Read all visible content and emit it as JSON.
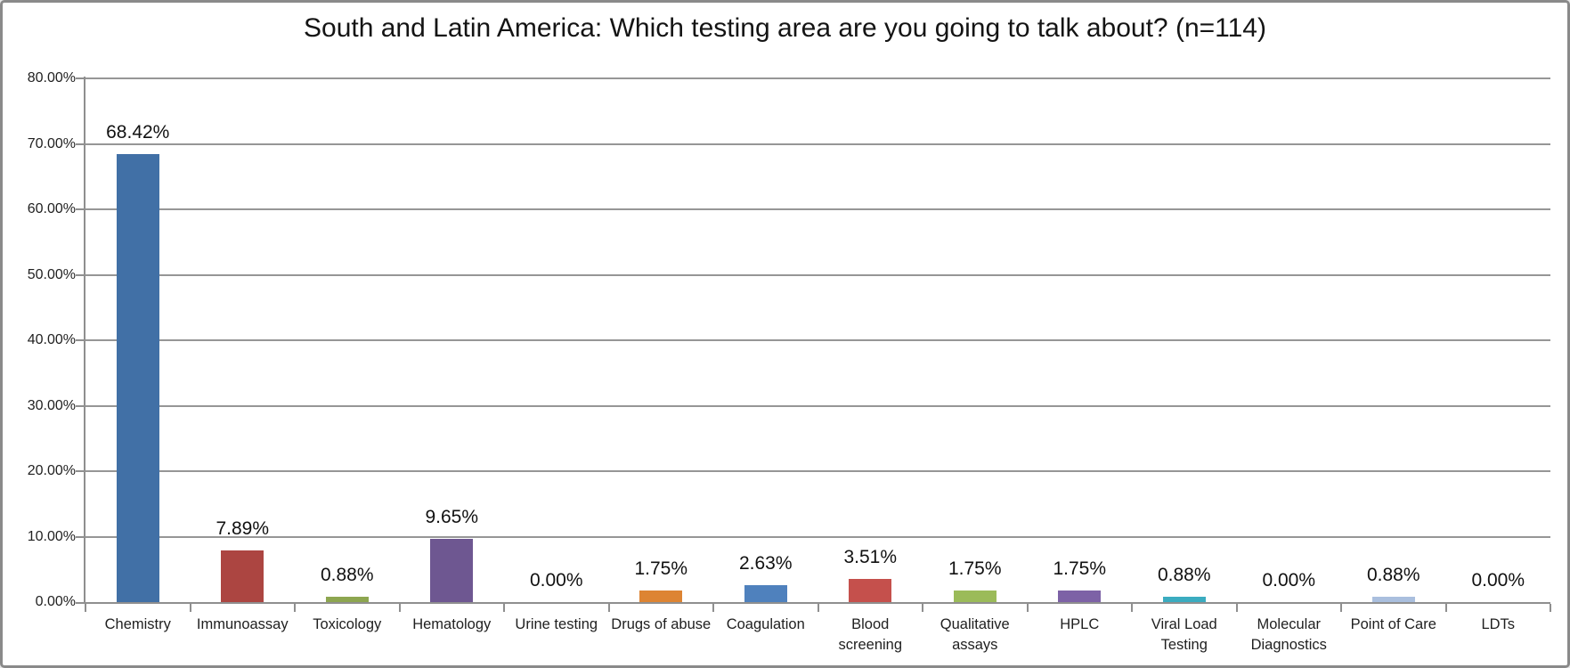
{
  "chart_data": {
    "type": "bar",
    "title": "South and Latin America: Which testing area are you going to talk about? (n=114)",
    "categories": [
      "Chemistry",
      "Immunoassay",
      "Toxicology",
      "Hematology",
      "Urine testing",
      "Drugs of abuse",
      "Coagulation",
      "Blood screening",
      "Qualitative assays",
      "HPLC",
      "Viral Load Testing",
      "Molecular Diagnostics",
      "Point of Care",
      "LDTs"
    ],
    "values": [
      68.42,
      7.89,
      0.88,
      9.65,
      0.0,
      1.75,
      2.63,
      3.51,
      1.75,
      1.75,
      0.88,
      0.0,
      0.88,
      0.0
    ],
    "value_labels": [
      "68.42%",
      "7.89%",
      "0.88%",
      "9.65%",
      "0.00%",
      "1.75%",
      "2.63%",
      "3.51%",
      "1.75%",
      "1.75%",
      "0.88%",
      "0.00%",
      "0.88%",
      "0.00%"
    ],
    "bar_colors": [
      "#4170A6",
      "#AC4541",
      "#8DA650",
      "#6E5791",
      "#4BACC6",
      "#DD8433",
      "#4F81BD",
      "#C5504C",
      "#9BBB59",
      "#7D62A6",
      "#3BACC0",
      "#E59548",
      "#AABFDE",
      "#729ACA"
    ],
    "xlabel": "",
    "ylabel": "",
    "ylim": [
      0,
      80
    ],
    "y_ticks": [
      "0.00%",
      "10.00%",
      "20.00%",
      "30.00%",
      "40.00%",
      "50.00%",
      "60.00%",
      "70.00%",
      "80.00%"
    ],
    "grid": true,
    "legend_position": "none",
    "colors": {
      "gridline": "#969696",
      "axis": "#8f8f8f",
      "text": "#1f1f1f",
      "frame_border": "#8a8a8a",
      "background": "#FFFFFF"
    }
  }
}
